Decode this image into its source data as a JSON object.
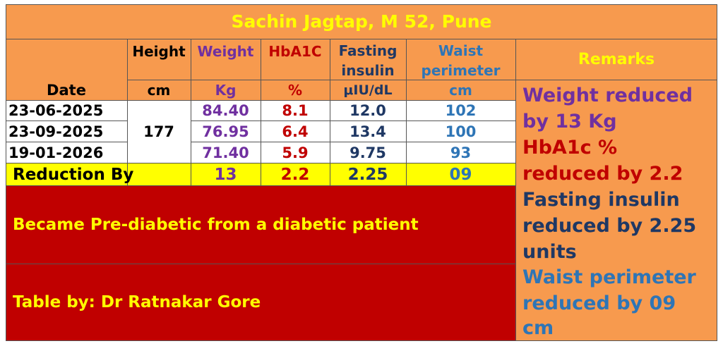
{
  "title": "Sachin Jagtap, M 52, Pune",
  "headers": {
    "date": "Date",
    "height": "Height",
    "height_unit": "cm",
    "weight": "Weight",
    "weight_unit": "Kg",
    "hba1c": "HbA1C",
    "hba1c_unit": "%",
    "fasting_line1": "Fasting",
    "fasting_line2": "insulin",
    "fasting_unit": "μIU/dL",
    "waist_line1": "Waist",
    "waist_line2": "perimeter",
    "waist_unit": "cm",
    "remarks": "Remarks"
  },
  "rows": [
    {
      "date": "23-06-2025",
      "weight": "84.40",
      "hba1c": "8.1",
      "fasting": "12.0",
      "waist": "102"
    },
    {
      "date": "23-09-2025",
      "weight": "76.95",
      "hba1c": "6.4",
      "fasting": "13.4",
      "waist": "100"
    },
    {
      "date": "19-01-2026",
      "weight": "71.40",
      "hba1c": "5.9",
      "fasting": "9.75",
      "waist": "93"
    }
  ],
  "height_value": "177",
  "reduction": {
    "label": "Reduction By",
    "weight": "13",
    "hba1c": "2.2",
    "fasting": "2.25",
    "waist": "09"
  },
  "notes": {
    "status": "Became Pre-diabetic from a diabetic patient",
    "credit": "Table by: Dr Ratnakar Gore"
  },
  "remarks": {
    "weight_l1": "Weight reduced",
    "weight_l2": "by 13 Kg",
    "hba1c_l1": "HbA1c %",
    "hba1c_l2": "reduced by 2.2",
    "fasting_l1": "Fasting insulin",
    "fasting_l2": "reduced by 2.25",
    "fasting_l3": "units",
    "waist_l1": "Waist perimeter",
    "waist_l2": "reduced by 09",
    "waist_l3": "cm"
  },
  "colors": {
    "orange": "#f79a4e",
    "yellow": "#ffff00",
    "red": "#c00000",
    "purple": "#7030a0",
    "navy": "#1f3864",
    "blue": "#2e75b6"
  }
}
